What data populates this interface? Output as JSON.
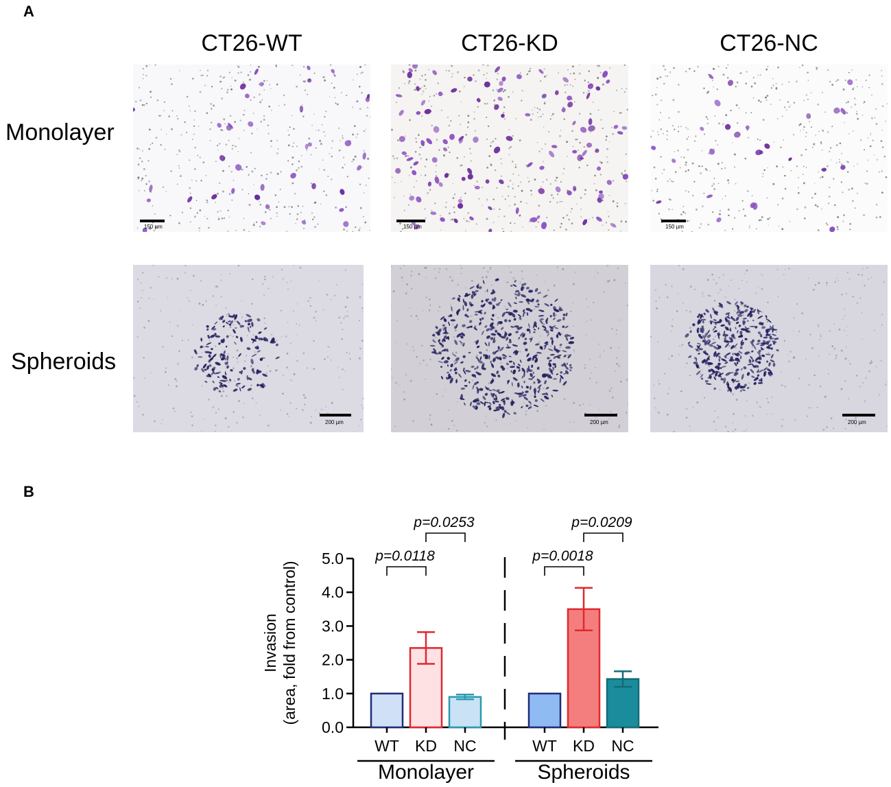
{
  "panel_a": {
    "letter": "A",
    "columns": [
      "CT26-WT",
      "CT26-KD",
      "CT26-NC"
    ],
    "rows": [
      "Monolayer",
      "Spheroids"
    ],
    "scale_bars": {
      "monolayer": [
        "150 µm",
        "150 µm",
        "150 µm"
      ],
      "spheroids": [
        "200 µm",
        "200 µm",
        "200 µm"
      ]
    }
  },
  "panel_b": {
    "letter": "B"
  },
  "chart_data": {
    "type": "bar",
    "ylabel_line1": "Invasion",
    "ylabel_line2": "(area, fold from control)",
    "ylim": [
      0,
      5
    ],
    "yticks": [
      "0.0",
      "1.0",
      "2.0",
      "3.0",
      "4.0",
      "5.0"
    ],
    "groups": [
      {
        "name": "Monolayer",
        "categories": [
          "WT",
          "KD",
          "NC"
        ],
        "values": [
          1.0,
          2.35,
          0.9
        ],
        "errors": [
          0,
          0.47,
          0.07
        ],
        "fills": [
          "#cfe0f7",
          "#fde1e3",
          "#c9e2f5"
        ],
        "strokes": [
          "#1f2a7a",
          "#e0282e",
          "#2a9ab0"
        ],
        "comparisons": [
          {
            "a": 0,
            "b": 1,
            "label": "p=0.0118",
            "level": 1
          },
          {
            "a": 1,
            "b": 2,
            "label": "p=0.0253",
            "level": 2
          }
        ]
      },
      {
        "name": "Spheroids",
        "categories": [
          "WT",
          "KD",
          "NC"
        ],
        "values": [
          1.0,
          3.5,
          1.43
        ],
        "errors": [
          0,
          0.63,
          0.23
        ],
        "fills": [
          "#8fbaf2",
          "#f47e7e",
          "#1b8c9c"
        ],
        "strokes": [
          "#1f2a7a",
          "#e0282e",
          "#156b78"
        ],
        "comparisons": [
          {
            "a": 0,
            "b": 1,
            "label": "p=0.0018",
            "level": 1
          },
          {
            "a": 1,
            "b": 2,
            "label": "p=0.0209",
            "level": 2
          }
        ]
      }
    ]
  }
}
